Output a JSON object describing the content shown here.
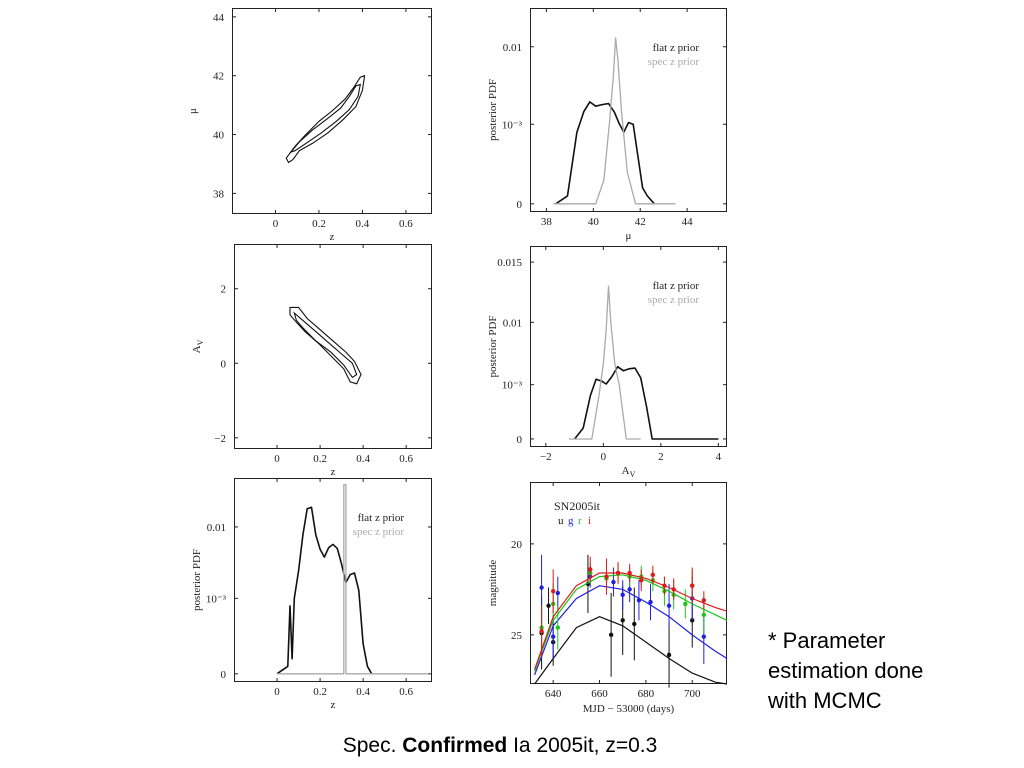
{
  "slide": {
    "note_lines": [
      "* Parameter",
      "estimation done",
      "with MCMC"
    ],
    "caption_pre": "Spec.",
    "caption_bold": "Confirmed",
    "caption_post": "Ia 2005it, z=0.3"
  },
  "colors": {
    "flat": "#111111",
    "spec": "#aaaaaa",
    "u": "#111111",
    "g": "#1f1fe0",
    "r": "#19c819",
    "i": "#dd1b1b"
  },
  "chart_data": [
    {
      "id": "z_mu_contour",
      "type": "contour",
      "xlabel": "z",
      "ylabel": "μ",
      "xlim": [
        -0.2,
        0.72
      ],
      "ylim": [
        37.3,
        44.3
      ],
      "xticks": [
        0,
        0.2,
        0.4,
        0.6
      ],
      "xticklabels": [
        "0",
        "0.2",
        "0.4",
        "0.6"
      ],
      "yticks": [
        38,
        40,
        42,
        44
      ],
      "yticklabels": [
        "38",
        "40",
        "42",
        "44"
      ],
      "contours": [
        [
          [
            0.06,
            39.3
          ],
          [
            0.09,
            39.6
          ],
          [
            0.14,
            40.0
          ],
          [
            0.2,
            40.45
          ],
          [
            0.26,
            40.8
          ],
          [
            0.32,
            41.2
          ],
          [
            0.36,
            41.6
          ],
          [
            0.39,
            41.95
          ],
          [
            0.41,
            42.0
          ],
          [
            0.4,
            41.5
          ],
          [
            0.37,
            40.95
          ],
          [
            0.31,
            40.5
          ],
          [
            0.24,
            40.05
          ],
          [
            0.17,
            39.7
          ],
          [
            0.11,
            39.45
          ],
          [
            0.08,
            39.15
          ],
          [
            0.06,
            39.05
          ],
          [
            0.05,
            39.2
          ]
        ],
        [
          [
            0.07,
            39.4
          ],
          [
            0.11,
            39.75
          ],
          [
            0.17,
            40.15
          ],
          [
            0.24,
            40.55
          ],
          [
            0.3,
            40.9
          ],
          [
            0.34,
            41.3
          ],
          [
            0.37,
            41.65
          ],
          [
            0.39,
            41.7
          ],
          [
            0.38,
            41.3
          ],
          [
            0.34,
            40.85
          ],
          [
            0.28,
            40.45
          ],
          [
            0.21,
            40.05
          ],
          [
            0.14,
            39.7
          ],
          [
            0.09,
            39.45
          ]
        ]
      ]
    },
    {
      "id": "mu_pdf",
      "type": "line",
      "xlabel": "μ",
      "ylabel": "posterior PDF",
      "xlim": [
        37.3,
        45.7
      ],
      "ylim": [
        0,
        0.0122
      ],
      "xticks": [
        38,
        40,
        42,
        44
      ],
      "xticklabels": [
        "38",
        "40",
        "42",
        "44"
      ],
      "yticks": [
        0,
        0.001,
        0.01
      ],
      "yticklabels": [
        "0",
        "10⁻³",
        "0.01"
      ],
      "legend": [
        "flat z prior",
        "spec z prior"
      ],
      "legend_position": "top-right",
      "series": [
        {
          "name": "flat z prior",
          "x": [
            38.4,
            38.9,
            39.3,
            39.6,
            39.85,
            40.1,
            40.4,
            40.65,
            40.9,
            41.1,
            41.3,
            41.5,
            41.7,
            41.9,
            42.1,
            42.3,
            42.6
          ],
          "y": [
            0,
            0.0001,
            0.0009,
            0.0025,
            0.0036,
            0.0031,
            0.0033,
            0.0034,
            0.0024,
            0.0011,
            0.0009,
            0.0012,
            0.001,
            0.0006,
            0.0002,
            0.0001,
            0
          ]
        },
        {
          "name": "spec z prior",
          "x": [
            38.3,
            40.1,
            40.45,
            40.7,
            40.85,
            40.95,
            41.05,
            41.2,
            41.45,
            41.8,
            43.5
          ],
          "y": [
            0,
            0,
            0.0003,
            0.0015,
            0.0065,
            0.0112,
            0.0085,
            0.0025,
            0.0004,
            0,
            0
          ]
        }
      ]
    },
    {
      "id": "z_av_contour",
      "type": "contour",
      "xlabel": "z",
      "ylabel": "A_V",
      "xlim": [
        -0.2,
        0.72
      ],
      "ylim": [
        -2.3,
        3.2
      ],
      "xticks": [
        0,
        0.2,
        0.4,
        0.6
      ],
      "xticklabels": [
        "0",
        "0.2",
        "0.4",
        "0.6"
      ],
      "yticks": [
        -2,
        0,
        2
      ],
      "yticklabels": [
        "−2",
        "0",
        "2"
      ],
      "contours": [
        [
          [
            0.06,
            1.5
          ],
          [
            0.1,
            1.5
          ],
          [
            0.14,
            1.2
          ],
          [
            0.2,
            0.9
          ],
          [
            0.26,
            0.6
          ],
          [
            0.32,
            0.3
          ],
          [
            0.36,
            0.05
          ],
          [
            0.39,
            -0.3
          ],
          [
            0.37,
            -0.55
          ],
          [
            0.34,
            -0.5
          ],
          [
            0.31,
            -0.15
          ],
          [
            0.25,
            0.2
          ],
          [
            0.19,
            0.55
          ],
          [
            0.13,
            0.85
          ],
          [
            0.09,
            1.1
          ],
          [
            0.06,
            1.3
          ]
        ],
        [
          [
            0.08,
            1.35
          ],
          [
            0.12,
            1.15
          ],
          [
            0.18,
            0.85
          ],
          [
            0.24,
            0.55
          ],
          [
            0.3,
            0.25
          ],
          [
            0.35,
            0.0
          ],
          [
            0.37,
            -0.3
          ],
          [
            0.35,
            -0.38
          ],
          [
            0.31,
            -0.05
          ],
          [
            0.25,
            0.3
          ],
          [
            0.18,
            0.6
          ],
          [
            0.12,
            0.95
          ],
          [
            0.09,
            1.15
          ]
        ]
      ]
    },
    {
      "id": "av_pdf",
      "type": "line",
      "xlabel": "A_V",
      "ylabel": "posterior PDF",
      "xlim": [
        -2.55,
        4.3
      ],
      "ylim": [
        0,
        0.0162
      ],
      "xticks": [
        -2,
        0,
        2,
        4
      ],
      "xticklabels": [
        "−2",
        "0",
        "2",
        "4"
      ],
      "yticks": [
        0,
        0.001,
        0.01,
        0.015
      ],
      "yticklabels": [
        "0",
        "10⁻³",
        "0.01",
        "0.015"
      ],
      "legend": [
        "flat z prior",
        "spec z prior"
      ],
      "legend_position": "top-right",
      "series": [
        {
          "name": "flat z prior",
          "x": [
            -1.0,
            -0.7,
            -0.45,
            -0.25,
            -0.05,
            0.1,
            0.3,
            0.5,
            0.7,
            0.9,
            1.1,
            1.3,
            1.5,
            1.7,
            4.0
          ],
          "y": [
            0,
            0.0002,
            0.0008,
            0.0018,
            0.0015,
            0.0011,
            0.0022,
            0.0036,
            0.003,
            0.0033,
            0.0034,
            0.002,
            0.0006,
            0,
            0
          ]
        },
        {
          "name": "spec z prior",
          "x": [
            -1.2,
            -0.4,
            -0.15,
            0.0,
            0.1,
            0.18,
            0.26,
            0.4,
            0.55,
            0.8,
            1.3
          ],
          "y": [
            0,
            0,
            0.0008,
            0.004,
            0.009,
            0.013,
            0.01,
            0.004,
            0.001,
            0,
            0
          ]
        }
      ]
    },
    {
      "id": "z_pdf",
      "type": "line",
      "xlabel": "z",
      "ylabel": "posterior PDF",
      "xlim": [
        -0.2,
        0.72
      ],
      "ylim": [
        -0.0004,
        0.0131
      ],
      "xticks": [
        0,
        0.2,
        0.4,
        0.6
      ],
      "xticklabels": [
        "0",
        "0.2",
        "0.4",
        "0.6"
      ],
      "yticks": [
        0,
        0.001,
        0.01
      ],
      "yticklabels": [
        "0",
        "10⁻³",
        "0.01"
      ],
      "legend": [
        "flat z prior",
        "spec z prior"
      ],
      "legend_position": "top-right",
      "series": [
        {
          "name": "flat z prior",
          "x": [
            0.0,
            0.05,
            0.06,
            0.07,
            0.08,
            0.1,
            0.12,
            0.14,
            0.16,
            0.18,
            0.2,
            0.22,
            0.24,
            0.26,
            0.28,
            0.3,
            0.32,
            0.34,
            0.36,
            0.38,
            0.4,
            0.42,
            0.44
          ],
          "y": [
            0,
            0.0001,
            0.0009,
            0.0002,
            0.001,
            0.0045,
            0.009,
            0.0112,
            0.0113,
            0.009,
            0.0072,
            0.0062,
            0.0074,
            0.0078,
            0.0073,
            0.0053,
            0.003,
            0.004,
            0.0042,
            0.002,
            0.0004,
            0.0001,
            0
          ]
        },
        {
          "name": "spec z prior",
          "x": [
            0.0,
            0.31,
            0.31,
            0.32,
            0.32,
            0.7
          ],
          "y": [
            0,
            0,
            0.0128,
            0.0128,
            0,
            0
          ]
        }
      ]
    },
    {
      "id": "lightcurve",
      "type": "scatter",
      "title": "SN2005it",
      "bands": [
        "u",
        "g",
        "r",
        "i"
      ],
      "xlabel": "MJD − 53000 (days)",
      "ylabel": "magnitude",
      "xlim": [
        630,
        715
      ],
      "ylim": [
        27.7,
        16.6
      ],
      "xticks": [
        640,
        660,
        680,
        700
      ],
      "xticklabels": [
        "640",
        "660",
        "680",
        "700"
      ],
      "yticks": [
        20,
        25
      ],
      "yticklabels": [
        "20",
        "25"
      ],
      "series": [
        {
          "name": "u",
          "model_x": [
            632,
            640,
            650,
            660,
            670,
            680,
            690,
            700,
            710,
            715
          ],
          "model_y": [
            27.7,
            26.3,
            24.6,
            24.0,
            24.5,
            25.4,
            26.3,
            27.1,
            27.6,
            27.7
          ],
          "x": [
            635,
            638,
            640,
            655,
            665,
            670,
            675,
            690,
            700
          ],
          "y": [
            24.9,
            23.4,
            25.4,
            22.2,
            25.0,
            24.2,
            24.4,
            26.1,
            24.2
          ],
          "err": [
            2.0,
            1.0,
            1.3,
            1.6,
            2.3,
            1.9,
            2.0,
            1.8,
            1.5
          ]
        },
        {
          "name": "g",
          "model_x": [
            632,
            640,
            650,
            660,
            670,
            680,
            690,
            700,
            710,
            715
          ],
          "model_y": [
            27.2,
            24.5,
            23.0,
            22.3,
            22.5,
            23.2,
            24.0,
            25.0,
            25.9,
            26.3
          ],
          "x": [
            635,
            640,
            642,
            656,
            666,
            670,
            673,
            677,
            682,
            690,
            700,
            705
          ],
          "y": [
            22.4,
            25.1,
            22.7,
            21.8,
            22.1,
            22.8,
            22.5,
            23.1,
            23.2,
            23.4,
            23.0,
            25.1
          ],
          "err": [
            1.8,
            1.2,
            0.9,
            0.6,
            0.8,
            0.8,
            0.7,
            1.1,
            1.0,
            1.2,
            1.2,
            1.5
          ]
        },
        {
          "name": "r",
          "model_x": [
            632,
            640,
            650,
            660,
            670,
            680,
            690,
            700,
            710,
            715
          ],
          "model_y": [
            27.0,
            24.2,
            22.5,
            21.8,
            21.7,
            22.0,
            22.6,
            23.3,
            23.9,
            24.2
          ],
          "x": [
            635,
            640,
            642,
            656,
            663,
            668,
            673,
            678,
            683,
            688,
            692,
            697,
            700,
            705
          ],
          "y": [
            24.6,
            23.3,
            24.6,
            21.6,
            21.9,
            21.6,
            21.8,
            21.8,
            22.0,
            22.6,
            22.8,
            23.3,
            22.3,
            23.9
          ],
          "err": [
            1.2,
            1.1,
            1.2,
            0.6,
            0.5,
            0.5,
            0.5,
            0.6,
            0.6,
            0.8,
            0.8,
            0.8,
            0.9,
            1.0
          ]
        },
        {
          "name": "i",
          "model_x": [
            632,
            640,
            650,
            660,
            670,
            680,
            690,
            700,
            710,
            715
          ],
          "model_y": [
            26.9,
            24.0,
            22.3,
            21.6,
            21.6,
            21.9,
            22.4,
            23.0,
            23.5,
            23.7
          ],
          "x": [
            635,
            640,
            656,
            663,
            668,
            673,
            678,
            683,
            688,
            692,
            700,
            705
          ],
          "y": [
            24.8,
            22.6,
            21.4,
            21.8,
            21.6,
            21.6,
            22.0,
            21.7,
            22.3,
            22.5,
            22.3,
            23.1
          ],
          "err": [
            1.4,
            1.2,
            0.7,
            1.0,
            0.6,
            0.5,
            0.6,
            0.5,
            0.5,
            0.6,
            1.0,
            0.5
          ]
        }
      ]
    }
  ]
}
